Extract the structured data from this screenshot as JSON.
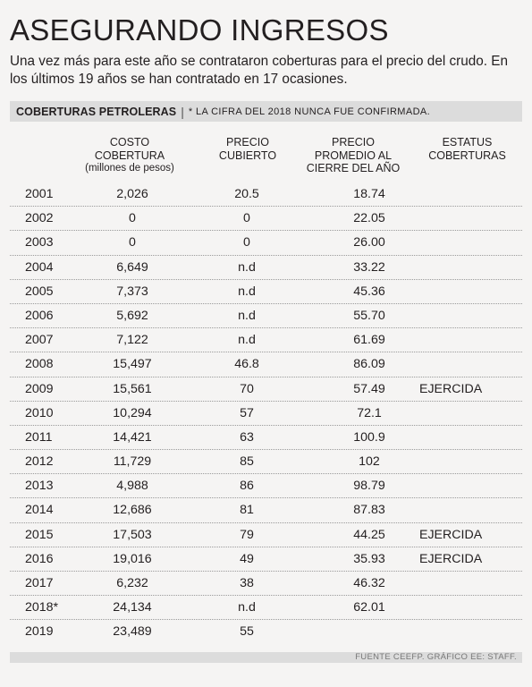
{
  "title": "ASEGURANDO INGRESOS",
  "subtitle": "Una vez más para este año se contrataron coberturas para el precio  del crudo. En los últimos 19 años se han contratado en 17 ocasiones.",
  "band": {
    "label": "COBERTURAS PETROLERAS",
    "separator": "|",
    "note": "* LA CIFRA DEL 2018 NUNCA FUE CONFIRMADA."
  },
  "headers": {
    "cost_line1": "COSTO",
    "cost_line2": "COBERTURA",
    "cost_line3": "(millones de pesos)",
    "price_line1": "PRECIO",
    "price_line2": "CUBIERTO",
    "avg_line1": "PRECIO",
    "avg_line2": "PROMEDIO AL",
    "avg_line3": "CIERRE DEL AÑO",
    "status_line1": "ESTATUS",
    "status_line2": "COBERTURAS"
  },
  "rows": [
    {
      "year": "2001",
      "cost": "2,026",
      "price": "20.5",
      "avg": "18.74",
      "status": ""
    },
    {
      "year": "2002",
      "cost": "0",
      "price": "0",
      "avg": "22.05",
      "status": ""
    },
    {
      "year": "2003",
      "cost": "0",
      "price": "0",
      "avg": "26.00",
      "status": ""
    },
    {
      "year": "2004",
      "cost": "6,649",
      "price": "n.d",
      "avg": "33.22",
      "status": ""
    },
    {
      "year": "2005",
      "cost": "7,373",
      "price": "n.d",
      "avg": "45.36",
      "status": ""
    },
    {
      "year": "2006",
      "cost": "5,692",
      "price": "n.d",
      "avg": "55.70",
      "status": ""
    },
    {
      "year": "2007",
      "cost": "7,122",
      "price": "n.d",
      "avg": "61.69",
      "status": ""
    },
    {
      "year": "2008",
      "cost": "15,497",
      "price": "46.8",
      "avg": "86.09",
      "status": ""
    },
    {
      "year": "2009",
      "cost": "15,561",
      "price": "70",
      "avg": "57.49",
      "status": "EJERCIDA"
    },
    {
      "year": "2010",
      "cost": "10,294",
      "price": "57",
      "avg": "72.1",
      "status": ""
    },
    {
      "year": "2011",
      "cost": "14,421",
      "price": "63",
      "avg": "100.9",
      "status": ""
    },
    {
      "year": "2012",
      "cost": "11,729",
      "price": "85",
      "avg": "102",
      "status": ""
    },
    {
      "year": "2013",
      "cost": "4,988",
      "price": "86",
      "avg": "98.79",
      "status": ""
    },
    {
      "year": "2014",
      "cost": "12,686",
      "price": "81",
      "avg": "87.83",
      "status": ""
    },
    {
      "year": "2015",
      "cost": "17,503",
      "price": "79",
      "avg": "44.25",
      "status": "EJERCIDA"
    },
    {
      "year": "2016",
      "cost": "19,016",
      "price": "49",
      "avg": "35.93",
      "status": "EJERCIDA"
    },
    {
      "year": "2017",
      "cost": "6,232",
      "price": "38",
      "avg": "46.32",
      "status": ""
    },
    {
      "year": "2018*",
      "cost": "24,134",
      "price": "n.d",
      "avg": "62.01",
      "status": ""
    },
    {
      "year": "2019",
      "cost": "23,489",
      "price": "55",
      "avg": "",
      "status": ""
    }
  ],
  "footer": "FUENTE CEEFP. GRÁFICO EE: STAFF."
}
